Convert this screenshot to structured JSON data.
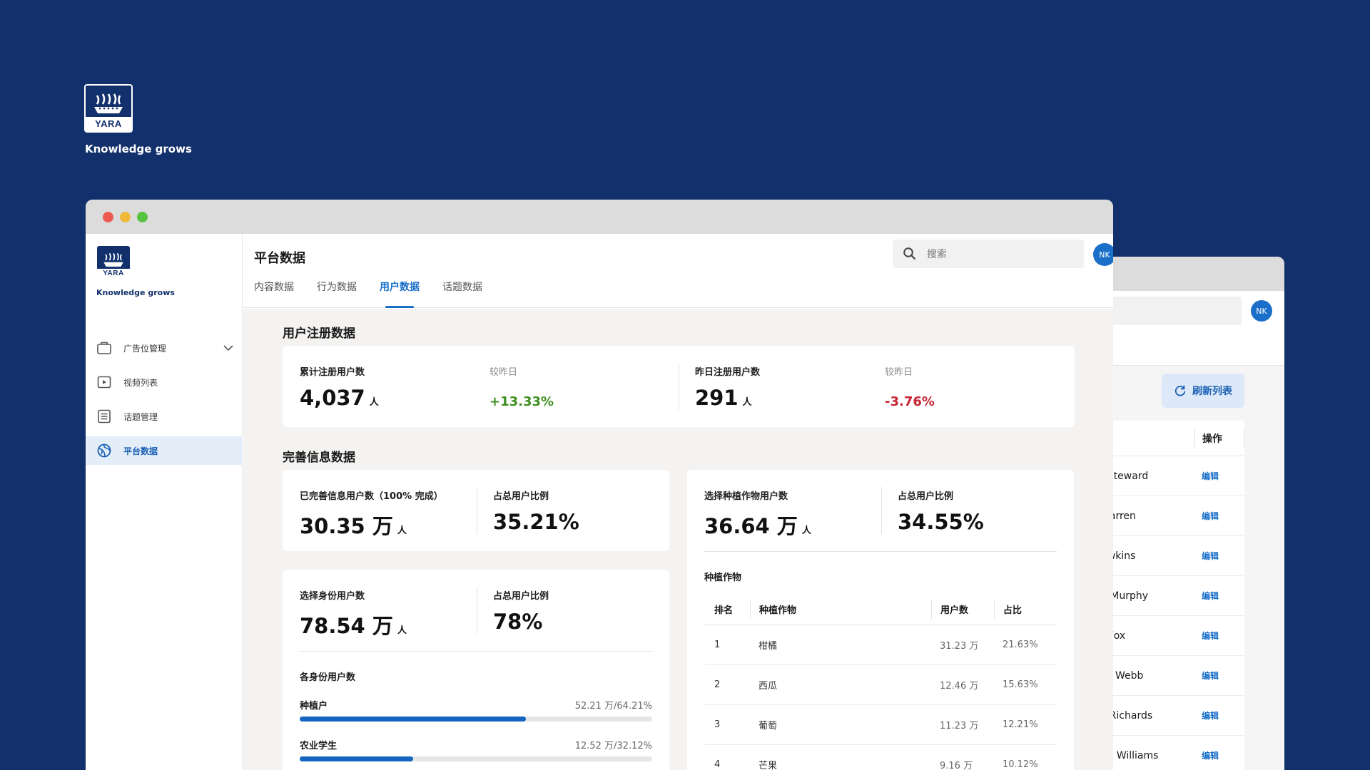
{
  "brand": {
    "logo_text": "YARA",
    "tagline": "Knowledge grows",
    "color": "#12306c",
    "accent": "#1a6fc9"
  },
  "back_window": {
    "avatar": "NK",
    "refresh_label": "刷新列表",
    "op_header": "操作",
    "rows": [
      {
        "name": "rrell Steward",
        "action": "编辑"
      },
      {
        "name": "de Warren",
        "action": "编辑"
      },
      {
        "name": "y Hawkins",
        "action": "编辑"
      },
      {
        "name": "hryn Murphy",
        "action": "编辑"
      },
      {
        "name": "bert Fox",
        "action": "编辑"
      },
      {
        "name": "eresa Webb",
        "action": "编辑"
      },
      {
        "name": "nald Richards",
        "action": "编辑"
      },
      {
        "name": "neron Williams",
        "action": "编辑"
      }
    ]
  },
  "sidebar": {
    "items": [
      {
        "label": "广告位管理",
        "icon": "briefcase-icon",
        "expandable": true
      },
      {
        "label": "视频列表",
        "icon": "video-icon"
      },
      {
        "label": "话题管理",
        "icon": "topic-list-icon"
      },
      {
        "label": "平台数据",
        "icon": "globe-icon",
        "active": true
      }
    ]
  },
  "header": {
    "title": "平台数据",
    "search_placeholder": "搜索",
    "avatar": "NK",
    "tabs": [
      {
        "label": "内容数据"
      },
      {
        "label": "行为数据"
      },
      {
        "label": "用户数据",
        "active": true
      },
      {
        "label": "话题数据"
      }
    ]
  },
  "registration": {
    "title": "用户注册数据",
    "total_label": "累计注册用户数",
    "total_value": "4,037",
    "unit": "人",
    "compare_label": "较昨日",
    "total_change": "+13.33%",
    "yesterday_label": "昨日注册用户数",
    "yesterday_value": "291",
    "yesterday_change": "-3.76%"
  },
  "completion": {
    "title": "完善信息数据",
    "complete": {
      "label": "已完善信息用户数（100% 完成）",
      "value": "30.35 万",
      "unit": "人",
      "ratio_label": "占总用户比例",
      "ratio": "35.21%"
    },
    "identity": {
      "label": "选择身份用户数",
      "value": "78.54 万",
      "unit": "人",
      "ratio_label": "占总用户比例",
      "ratio": "78%"
    },
    "identity_breakdown": {
      "title": "各身份用户数",
      "items": [
        {
          "label": "种植户",
          "value": "52.21 万/64.21%",
          "fraction": 0.6421
        },
        {
          "label": "农业学生",
          "value": "12.52 万/32.12%",
          "fraction": 0.3212
        }
      ]
    },
    "crop": {
      "label": "选择种植作物用户数",
      "value": "36.64 万",
      "unit": "人",
      "ratio_label": "占总用户比例",
      "ratio": "34.55%"
    },
    "crop_table": {
      "title": "种植作物",
      "headers": {
        "rank": "排名",
        "crop": "种植作物",
        "users": "用户数",
        "pct": "占比"
      },
      "rows": [
        {
          "rank": "1",
          "crop": "柑橘",
          "users": "31.23 万",
          "pct": "21.63%"
        },
        {
          "rank": "2",
          "crop": "西瓜",
          "users": "12.46 万",
          "pct": "15.63%"
        },
        {
          "rank": "3",
          "crop": "葡萄",
          "users": "11.23 万",
          "pct": "12.21%"
        },
        {
          "rank": "4",
          "crop": "芒果",
          "users": "9.16 万",
          "pct": "10.12%"
        }
      ]
    }
  }
}
